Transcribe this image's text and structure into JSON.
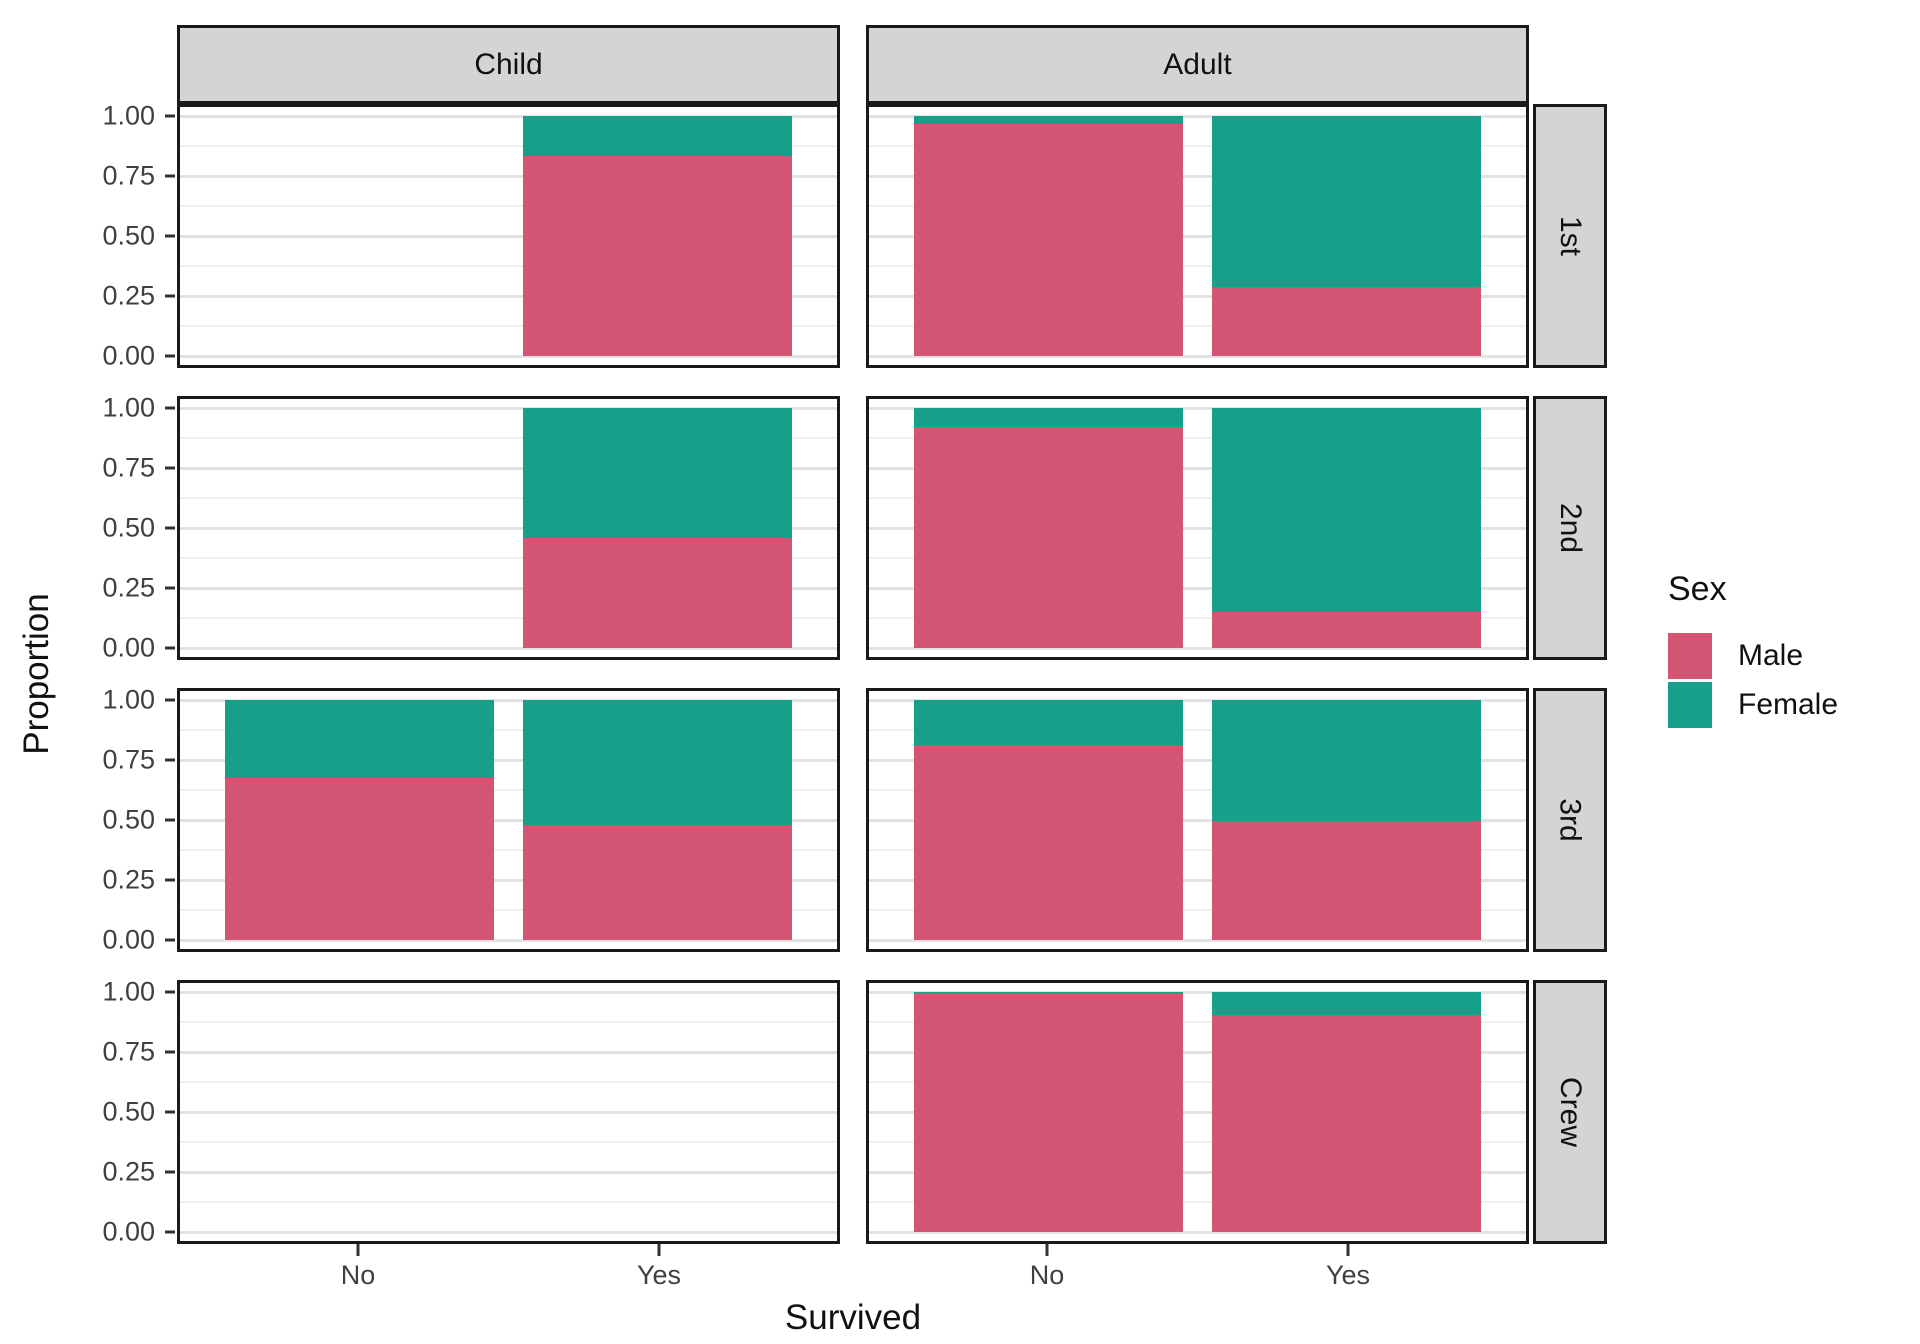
{
  "chart_data": {
    "type": "bar",
    "stacked": true,
    "normalized": true,
    "title": "",
    "xlabel": "Survived",
    "ylabel": "Proportion",
    "legend_title": "Sex",
    "legend_position": "right",
    "grid": true,
    "ylim": [
      0,
      1
    ],
    "y_ticks": [
      "1.00",
      "0.75",
      "0.50",
      "0.25",
      "0.00"
    ],
    "x_categories": [
      "No",
      "Yes"
    ],
    "facet_cols": [
      "Child",
      "Adult"
    ],
    "facet_rows": [
      "1st",
      "2nd",
      "3rd",
      "Crew"
    ],
    "series": [
      {
        "name": "Male",
        "color": "#d45573"
      },
      {
        "name": "Female",
        "color": "#16a08a"
      }
    ],
    "colors": {
      "strip_fill": "#d4d4d4",
      "panel_border": "#1a1a1a",
      "grid_major": "#e2e2e2",
      "grid_minor": "#f0f0f0",
      "tick_text": "#404040"
    },
    "panels": [
      {
        "class": "1st",
        "cells": [
          {
            "age": "Child",
            "bars": [
              {
                "x": "No",
                "present": false
              },
              {
                "x": "Yes",
                "present": true,
                "male": 0.833,
                "female": 0.167
              }
            ]
          },
          {
            "age": "Adult",
            "bars": [
              {
                "x": "No",
                "present": true,
                "male": 0.967,
                "female": 0.033
              },
              {
                "x": "Yes",
                "present": true,
                "male": 0.289,
                "female": 0.711
              }
            ]
          }
        ]
      },
      {
        "class": "2nd",
        "cells": [
          {
            "age": "Child",
            "bars": [
              {
                "x": "No",
                "present": false
              },
              {
                "x": "Yes",
                "present": true,
                "male": 0.458,
                "female": 0.542
              }
            ]
          },
          {
            "age": "Adult",
            "bars": [
              {
                "x": "No",
                "present": true,
                "male": 0.922,
                "female": 0.078
              },
              {
                "x": "Yes",
                "present": true,
                "male": 0.149,
                "female": 0.851
              }
            ]
          }
        ]
      },
      {
        "class": "3rd",
        "cells": [
          {
            "age": "Child",
            "bars": [
              {
                "x": "No",
                "present": true,
                "male": 0.673,
                "female": 0.327
              },
              {
                "x": "Yes",
                "present": true,
                "male": 0.481,
                "female": 0.519
              }
            ]
          },
          {
            "age": "Adult",
            "bars": [
              {
                "x": "No",
                "present": true,
                "male": 0.813,
                "female": 0.187
              },
              {
                "x": "Yes",
                "present": true,
                "male": 0.497,
                "female": 0.503
              }
            ]
          }
        ]
      },
      {
        "class": "Crew",
        "cells": [
          {
            "age": "Child",
            "bars": [
              {
                "x": "No",
                "present": false
              },
              {
                "x": "Yes",
                "present": false
              }
            ]
          },
          {
            "age": "Adult",
            "bars": [
              {
                "x": "No",
                "present": true,
                "male": 0.996,
                "female": 0.004
              },
              {
                "x": "Yes",
                "present": true,
                "male": 0.906,
                "female": 0.094
              }
            ]
          }
        ]
      }
    ]
  }
}
